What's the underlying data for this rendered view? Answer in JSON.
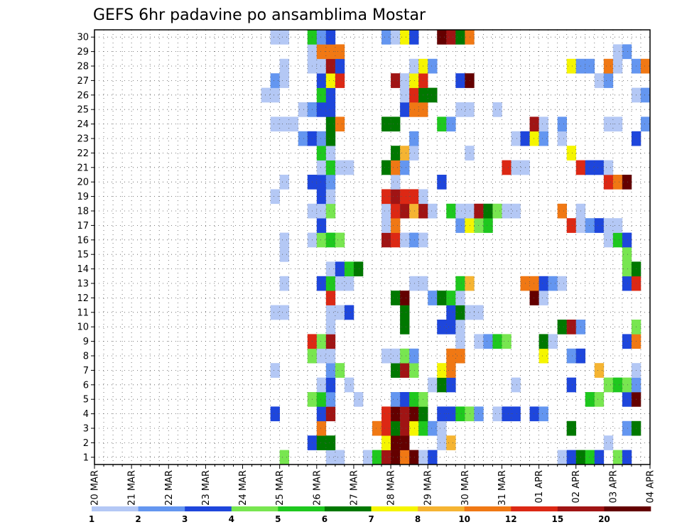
{
  "chart_data": {
    "type": "heatmap",
    "title": "GEFS 6hr padavine po ansamblima Mostar",
    "y_ticks": [
      "1",
      "2",
      "3",
      "4",
      "5",
      "6",
      "7",
      "8",
      "9",
      "10",
      "11",
      "12",
      "13",
      "14",
      "15",
      "16",
      "17",
      "18",
      "19",
      "20",
      "21",
      "22",
      "23",
      "24",
      "25",
      "26",
      "27",
      "28",
      "29",
      "30"
    ],
    "x_ticks": [
      "20 MAR",
      "21 MAR",
      "22 MAR",
      "23 MAR",
      "24 MAR",
      "25 MAR",
      "26 MAR",
      "27 MAR",
      "28 MAR",
      "29 MAR",
      "30 MAR",
      "31 MAR",
      "01 APR",
      "02 APR",
      "03 APR",
      "04 APR"
    ],
    "x_start": "2024-03-20T00",
    "step_hours": 6,
    "n_steps": 60,
    "ylim": [
      1,
      30
    ],
    "grid": true,
    "colorbar": {
      "labels": [
        "1",
        "2",
        "3",
        "4",
        "5",
        "6",
        "7",
        "8",
        "10",
        "12",
        "15",
        "20"
      ],
      "colors": [
        "#b4c8f5",
        "#6496f0",
        "#1e46dc",
        "#78e650",
        "#1ec81e",
        "#007800",
        "#f5f500",
        "#f5b432",
        "#f07814",
        "#dc2814",
        "#a01414",
        "#640000"
      ]
    },
    "cells": [
      [
        1,
        21,
        3
      ],
      [
        1,
        26,
        0
      ],
      [
        1,
        27,
        0
      ],
      [
        1,
        30,
        0
      ],
      [
        1,
        31,
        4
      ],
      [
        1,
        32,
        10
      ],
      [
        1,
        33,
        11
      ],
      [
        1,
        34,
        8
      ],
      [
        1,
        35,
        11
      ],
      [
        1,
        36,
        0
      ],
      [
        1,
        37,
        2
      ],
      [
        1,
        51,
        0
      ],
      [
        1,
        52,
        2
      ],
      [
        1,
        53,
        5
      ],
      [
        1,
        54,
        4
      ],
      [
        1,
        55,
        2
      ],
      [
        1,
        57,
        3
      ],
      [
        1,
        58,
        2
      ],
      [
        2,
        24,
        2
      ],
      [
        2,
        25,
        5
      ],
      [
        2,
        26,
        5
      ],
      [
        2,
        32,
        6
      ],
      [
        2,
        33,
        11
      ],
      [
        2,
        34,
        11
      ],
      [
        2,
        38,
        0
      ],
      [
        2,
        39,
        7
      ],
      [
        2,
        56,
        0
      ],
      [
        3,
        25,
        8
      ],
      [
        3,
        31,
        8
      ],
      [
        3,
        32,
        9
      ],
      [
        3,
        33,
        5
      ],
      [
        3,
        34,
        10
      ],
      [
        3,
        35,
        6
      ],
      [
        3,
        36,
        4
      ],
      [
        3,
        37,
        1
      ],
      [
        3,
        38,
        0
      ],
      [
        3,
        52,
        5
      ],
      [
        3,
        58,
        1
      ],
      [
        3,
        59,
        5
      ],
      [
        4,
        20,
        2
      ],
      [
        4,
        25,
        2
      ],
      [
        4,
        26,
        10
      ],
      [
        4,
        32,
        9
      ],
      [
        4,
        33,
        11
      ],
      [
        4,
        34,
        10
      ],
      [
        4,
        35,
        11
      ],
      [
        4,
        36,
        5
      ],
      [
        4,
        38,
        2
      ],
      [
        4,
        39,
        2
      ],
      [
        4,
        40,
        4
      ],
      [
        4,
        41,
        3
      ],
      [
        4,
        42,
        1
      ],
      [
        4,
        44,
        0
      ],
      [
        4,
        45,
        2
      ],
      [
        4,
        46,
        2
      ],
      [
        4,
        48,
        2
      ],
      [
        4,
        49,
        1
      ],
      [
        5,
        24,
        3
      ],
      [
        5,
        25,
        4
      ],
      [
        5,
        26,
        1
      ],
      [
        5,
        29,
        0
      ],
      [
        5,
        33,
        1
      ],
      [
        5,
        34,
        2
      ],
      [
        5,
        35,
        4
      ],
      [
        5,
        36,
        3
      ],
      [
        5,
        54,
        4
      ],
      [
        5,
        55,
        3
      ],
      [
        5,
        58,
        2
      ],
      [
        5,
        59,
        11
      ],
      [
        6,
        25,
        0
      ],
      [
        6,
        26,
        2
      ],
      [
        6,
        28,
        0
      ],
      [
        6,
        37,
        0
      ],
      [
        6,
        38,
        5
      ],
      [
        6,
        39,
        2
      ],
      [
        6,
        46,
        0
      ],
      [
        6,
        52,
        2
      ],
      [
        6,
        56,
        3
      ],
      [
        6,
        57,
        4
      ],
      [
        6,
        58,
        3
      ],
      [
        6,
        59,
        1
      ],
      [
        7,
        20,
        0
      ],
      [
        7,
        26,
        1
      ],
      [
        7,
        27,
        3
      ],
      [
        7,
        33,
        5
      ],
      [
        7,
        34,
        10
      ],
      [
        7,
        35,
        3
      ],
      [
        7,
        38,
        6
      ],
      [
        7,
        39,
        8
      ],
      [
        7,
        55,
        7
      ],
      [
        7,
        59,
        0
      ],
      [
        8,
        24,
        3
      ],
      [
        8,
        25,
        0
      ],
      [
        8,
        26,
        0
      ],
      [
        8,
        32,
        0
      ],
      [
        8,
        33,
        0
      ],
      [
        8,
        34,
        3
      ],
      [
        8,
        35,
        1
      ],
      [
        8,
        39,
        8
      ],
      [
        8,
        40,
        8
      ],
      [
        8,
        49,
        6
      ],
      [
        8,
        52,
        1
      ],
      [
        8,
        53,
        2
      ],
      [
        9,
        24,
        9
      ],
      [
        9,
        25,
        3
      ],
      [
        9,
        26,
        10
      ],
      [
        9,
        40,
        0
      ],
      [
        9,
        42,
        0
      ],
      [
        9,
        43,
        1
      ],
      [
        9,
        44,
        4
      ],
      [
        9,
        45,
        3
      ],
      [
        9,
        49,
        5
      ],
      [
        9,
        50,
        0
      ],
      [
        9,
        58,
        2
      ],
      [
        9,
        59,
        8
      ],
      [
        10,
        26,
        0
      ],
      [
        10,
        34,
        5
      ],
      [
        10,
        38,
        2
      ],
      [
        10,
        39,
        2
      ],
      [
        10,
        40,
        0
      ],
      [
        10,
        51,
        5
      ],
      [
        10,
        52,
        10
      ],
      [
        10,
        53,
        1
      ],
      [
        10,
        59,
        3
      ],
      [
        11,
        20,
        0
      ],
      [
        11,
        21,
        0
      ],
      [
        11,
        26,
        0
      ],
      [
        11,
        27,
        0
      ],
      [
        11,
        28,
        2
      ],
      [
        11,
        34,
        5
      ],
      [
        11,
        39,
        2
      ],
      [
        11,
        40,
        5
      ],
      [
        11,
        41,
        0
      ],
      [
        11,
        42,
        0
      ],
      [
        12,
        26,
        9
      ],
      [
        12,
        33,
        5
      ],
      [
        12,
        34,
        11
      ],
      [
        12,
        37,
        1
      ],
      [
        12,
        38,
        5
      ],
      [
        12,
        39,
        4
      ],
      [
        12,
        40,
        0
      ],
      [
        12,
        48,
        11
      ],
      [
        12,
        49,
        0
      ],
      [
        13,
        21,
        0
      ],
      [
        13,
        25,
        2
      ],
      [
        13,
        26,
        4
      ],
      [
        13,
        27,
        0
      ],
      [
        13,
        28,
        0
      ],
      [
        13,
        35,
        0
      ],
      [
        13,
        36,
        0
      ],
      [
        13,
        40,
        4
      ],
      [
        13,
        41,
        7
      ],
      [
        13,
        47,
        8
      ],
      [
        13,
        48,
        8
      ],
      [
        13,
        49,
        2
      ],
      [
        13,
        50,
        1
      ],
      [
        13,
        51,
        0
      ],
      [
        13,
        58,
        2
      ],
      [
        13,
        59,
        9
      ],
      [
        14,
        26,
        0
      ],
      [
        14,
        27,
        2
      ],
      [
        14,
        28,
        4
      ],
      [
        14,
        29,
        5
      ],
      [
        14,
        58,
        3
      ],
      [
        14,
        59,
        5
      ],
      [
        15,
        21,
        0
      ],
      [
        15,
        58,
        3
      ],
      [
        16,
        21,
        0
      ],
      [
        16,
        24,
        0
      ],
      [
        16,
        25,
        3
      ],
      [
        16,
        26,
        4
      ],
      [
        16,
        27,
        3
      ],
      [
        16,
        32,
        10
      ],
      [
        16,
        33,
        9
      ],
      [
        16,
        34,
        0
      ],
      [
        16,
        35,
        1
      ],
      [
        16,
        36,
        0
      ],
      [
        16,
        56,
        0
      ],
      [
        16,
        57,
        4
      ],
      [
        16,
        58,
        2
      ],
      [
        17,
        25,
        2
      ],
      [
        17,
        32,
        0
      ],
      [
        17,
        33,
        8
      ],
      [
        17,
        40,
        1
      ],
      [
        17,
        41,
        6
      ],
      [
        17,
        42,
        3
      ],
      [
        17,
        43,
        4
      ],
      [
        17,
        52,
        9
      ],
      [
        17,
        53,
        0
      ],
      [
        17,
        54,
        1
      ],
      [
        17,
        55,
        2
      ],
      [
        17,
        56,
        0
      ],
      [
        17,
        57,
        0
      ],
      [
        18,
        24,
        0
      ],
      [
        18,
        25,
        0
      ],
      [
        18,
        26,
        3
      ],
      [
        18,
        32,
        0
      ],
      [
        18,
        33,
        9
      ],
      [
        18,
        34,
        10
      ],
      [
        18,
        35,
        7
      ],
      [
        18,
        36,
        10
      ],
      [
        18,
        37,
        0
      ],
      [
        18,
        39,
        4
      ],
      [
        18,
        40,
        0
      ],
      [
        18,
        41,
        0
      ],
      [
        18,
        42,
        10
      ],
      [
        18,
        43,
        5
      ],
      [
        18,
        44,
        3
      ],
      [
        18,
        45,
        0
      ],
      [
        18,
        46,
        0
      ],
      [
        18,
        51,
        8
      ],
      [
        18,
        53,
        0
      ],
      [
        19,
        20,
        0
      ],
      [
        19,
        25,
        2
      ],
      [
        19,
        26,
        0
      ],
      [
        19,
        32,
        9
      ],
      [
        19,
        33,
        10
      ],
      [
        19,
        34,
        9
      ],
      [
        19,
        35,
        9
      ],
      [
        19,
        36,
        0
      ],
      [
        20,
        21,
        0
      ],
      [
        20,
        24,
        2
      ],
      [
        20,
        25,
        2
      ],
      [
        20,
        26,
        1
      ],
      [
        20,
        33,
        0
      ],
      [
        20,
        38,
        2
      ],
      [
        20,
        56,
        9
      ],
      [
        20,
        57,
        8
      ],
      [
        20,
        58,
        11
      ],
      [
        21,
        25,
        0
      ],
      [
        21,
        26,
        4
      ],
      [
        21,
        27,
        0
      ],
      [
        21,
        28,
        0
      ],
      [
        21,
        32,
        5
      ],
      [
        21,
        33,
        8
      ],
      [
        21,
        34,
        1
      ],
      [
        21,
        45,
        9
      ],
      [
        21,
        46,
        0
      ],
      [
        21,
        47,
        0
      ],
      [
        21,
        53,
        9
      ],
      [
        21,
        54,
        2
      ],
      [
        21,
        55,
        2
      ],
      [
        21,
        56,
        0
      ],
      [
        22,
        25,
        4
      ],
      [
        22,
        26,
        0
      ],
      [
        22,
        33,
        5
      ],
      [
        22,
        34,
        7
      ],
      [
        22,
        35,
        0
      ],
      [
        22,
        41,
        0
      ],
      [
        22,
        52,
        6
      ],
      [
        23,
        23,
        1
      ],
      [
        23,
        24,
        2
      ],
      [
        23,
        25,
        1
      ],
      [
        23,
        26,
        5
      ],
      [
        23,
        35,
        1
      ],
      [
        23,
        46,
        0
      ],
      [
        23,
        47,
        2
      ],
      [
        23,
        48,
        6
      ],
      [
        23,
        49,
        1
      ],
      [
        23,
        51,
        0
      ],
      [
        23,
        59,
        2
      ],
      [
        24,
        20,
        0
      ],
      [
        24,
        21,
        0
      ],
      [
        24,
        22,
        0
      ],
      [
        24,
        26,
        5
      ],
      [
        24,
        27,
        8
      ],
      [
        24,
        32,
        5
      ],
      [
        24,
        33,
        5
      ],
      [
        24,
        38,
        4
      ],
      [
        24,
        39,
        1
      ],
      [
        24,
        48,
        10
      ],
      [
        24,
        49,
        0
      ],
      [
        24,
        51,
        1
      ],
      [
        24,
        56,
        0
      ],
      [
        24,
        57,
        0
      ],
      [
        24,
        60,
        1
      ],
      [
        25,
        23,
        0
      ],
      [
        25,
        24,
        1
      ],
      [
        25,
        25,
        2
      ],
      [
        25,
        26,
        2
      ],
      [
        25,
        34,
        2
      ],
      [
        25,
        35,
        8
      ],
      [
        25,
        36,
        8
      ],
      [
        25,
        40,
        0
      ],
      [
        25,
        41,
        0
      ],
      [
        25,
        44,
        0
      ],
      [
        26,
        19,
        0
      ],
      [
        26,
        20,
        0
      ],
      [
        26,
        25,
        4
      ],
      [
        26,
        26,
        2
      ],
      [
        26,
        34,
        0
      ],
      [
        26,
        35,
        9
      ],
      [
        26,
        36,
        5
      ],
      [
        26,
        37,
        5
      ],
      [
        26,
        59,
        0
      ],
      [
        26,
        60,
        1
      ],
      [
        27,
        20,
        1
      ],
      [
        27,
        21,
        0
      ],
      [
        27,
        25,
        2
      ],
      [
        27,
        26,
        6
      ],
      [
        27,
        27,
        9
      ],
      [
        27,
        33,
        10
      ],
      [
        27,
        34,
        0
      ],
      [
        27,
        35,
        6
      ],
      [
        27,
        36,
        9
      ],
      [
        27,
        40,
        2
      ],
      [
        27,
        41,
        11
      ],
      [
        27,
        55,
        0
      ],
      [
        27,
        56,
        1
      ],
      [
        28,
        21,
        0
      ],
      [
        28,
        24,
        0
      ],
      [
        28,
        25,
        0
      ],
      [
        28,
        26,
        10
      ],
      [
        28,
        27,
        2
      ],
      [
        28,
        35,
        0
      ],
      [
        28,
        36,
        6
      ],
      [
        28,
        37,
        1
      ],
      [
        28,
        52,
        6
      ],
      [
        28,
        53,
        1
      ],
      [
        28,
        54,
        1
      ],
      [
        28,
        56,
        8
      ],
      [
        28,
        57,
        0
      ],
      [
        28,
        59,
        1
      ],
      [
        28,
        60,
        8
      ],
      [
        29,
        24,
        0
      ],
      [
        29,
        25,
        8
      ],
      [
        29,
        26,
        8
      ],
      [
        29,
        27,
        8
      ],
      [
        29,
        57,
        0
      ],
      [
        29,
        58,
        1
      ],
      [
        30,
        20,
        0
      ],
      [
        30,
        21,
        0
      ],
      [
        30,
        24,
        4
      ],
      [
        30,
        25,
        1
      ],
      [
        30,
        26,
        2
      ],
      [
        30,
        32,
        1
      ],
      [
        30,
        33,
        0
      ],
      [
        30,
        34,
        6
      ],
      [
        30,
        35,
        2
      ],
      [
        30,
        38,
        11
      ],
      [
        30,
        39,
        10
      ],
      [
        30,
        40,
        5
      ],
      [
        30,
        41,
        8
      ]
    ]
  }
}
